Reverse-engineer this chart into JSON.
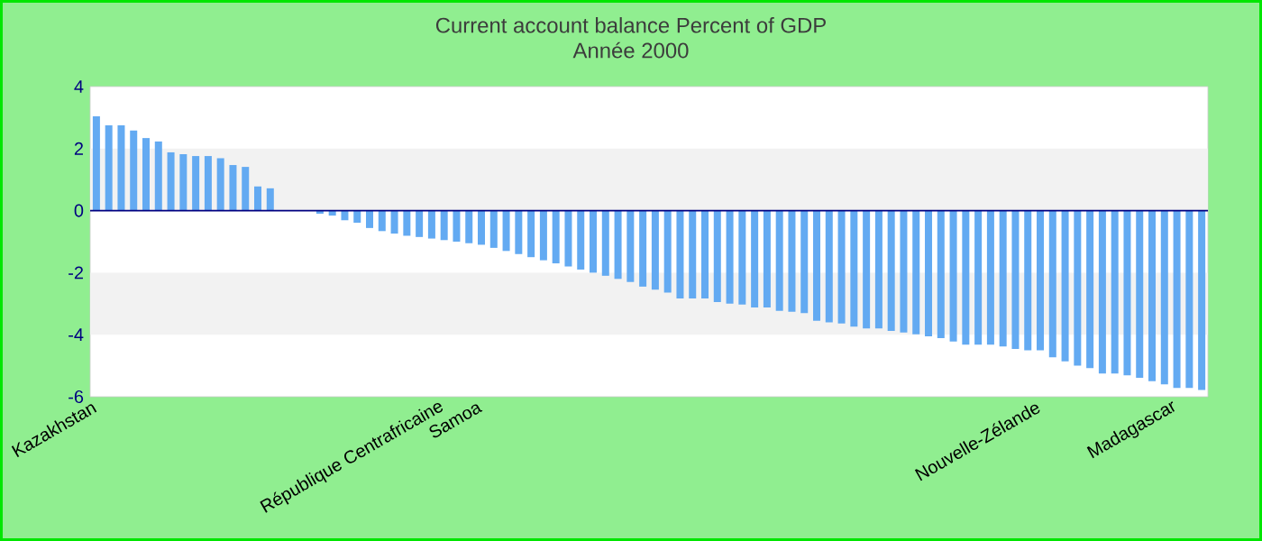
{
  "chart_data": {
    "type": "bar",
    "title": "Current account balance  Percent of GDP",
    "subtitle": "Année 2000",
    "color": "#63aaf2",
    "categories": [
      "Kazakhstan",
      null,
      null,
      null,
      null,
      null,
      null,
      null,
      null,
      null,
      null,
      null,
      null,
      null,
      null,
      null,
      null,
      null,
      null,
      null,
      null,
      null,
      null,
      null,
      null,
      null,
      null,
      null,
      "République Centrafricaine",
      null,
      null,
      "Samoa",
      null,
      null,
      null,
      null,
      null,
      null,
      null,
      null,
      null,
      null,
      null,
      null,
      null,
      null,
      null,
      null,
      null,
      null,
      null,
      null,
      null,
      null,
      null,
      null,
      null,
      null,
      null,
      null,
      null,
      null,
      null,
      null,
      null,
      null,
      null,
      null,
      null,
      null,
      null,
      null,
      null,
      null,
      null,
      null,
      "Nouvelle-Zélande",
      null,
      null,
      null,
      null,
      null,
      null,
      null,
      null,
      null,
      null,
      "Madagascar",
      null,
      null
    ],
    "values": [
      3.04,
      2.75,
      2.75,
      2.58,
      2.34,
      2.23,
      1.88,
      1.82,
      1.76,
      1.76,
      1.69,
      1.47,
      1.41,
      0.78,
      0.72,
      0,
      0,
      0,
      -0.1,
      -0.16,
      -0.31,
      -0.39,
      -0.56,
      -0.66,
      -0.74,
      -0.81,
      -0.85,
      -0.9,
      -0.95,
      -1.0,
      -1.05,
      -1.1,
      -1.2,
      -1.3,
      -1.4,
      -1.5,
      -1.6,
      -1.7,
      -1.8,
      -1.9,
      -2.0,
      -2.1,
      -2.2,
      -2.3,
      -2.45,
      -2.55,
      -2.64,
      -2.83,
      -2.83,
      -2.83,
      -2.95,
      -3.0,
      -3.03,
      -3.12,
      -3.12,
      -3.23,
      -3.26,
      -3.3,
      -3.55,
      -3.6,
      -3.64,
      -3.74,
      -3.8,
      -3.8,
      -3.88,
      -3.93,
      -3.99,
      -4.05,
      -4.11,
      -4.22,
      -4.32,
      -4.32,
      -4.32,
      -4.38,
      -4.46,
      -4.5,
      -4.5,
      -4.73,
      -4.86,
      -5.0,
      -5.08,
      -5.25,
      -5.25,
      -5.31,
      -5.39,
      -5.5,
      -5.6,
      -5.72,
      -5.72,
      -5.78
    ],
    "ylim": [
      -6,
      4
    ],
    "yticks": [
      -6,
      -4,
      -2,
      0,
      2,
      4
    ],
    "ref_lines": [
      {
        "axis": "y",
        "value": 0,
        "color": "#000080"
      }
    ],
    "bands": [
      {
        "axis": "y",
        "from": 0,
        "to": 2,
        "color": "#f2f2f2"
      },
      {
        "axis": "y",
        "from": -4,
        "to": -2,
        "color": "#f2f2f2"
      }
    ]
  }
}
